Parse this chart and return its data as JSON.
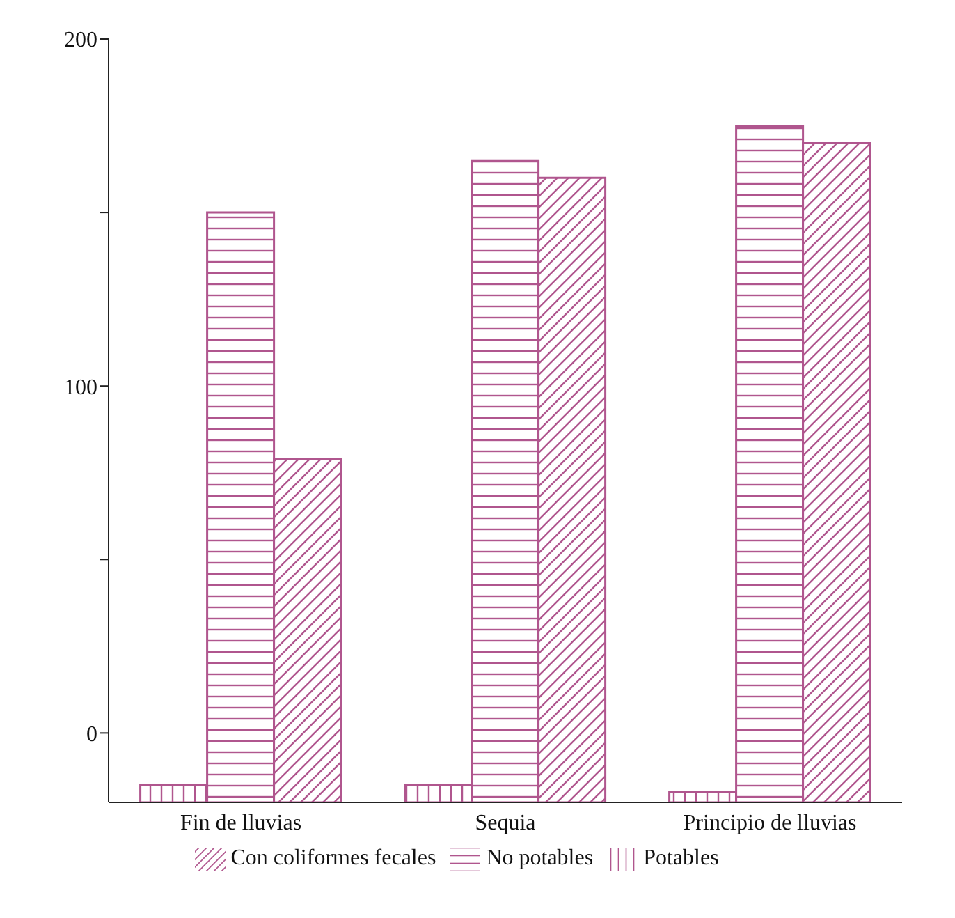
{
  "chart_data": {
    "type": "bar",
    "categories": [
      "Fin de lluvias",
      "Sequia",
      "Principio de lluvias"
    ],
    "series": [
      {
        "name": "Potables",
        "color": "#b0568e",
        "values": [
          5,
          5,
          3
        ],
        "base": [
          -20,
          -20,
          -20
        ]
      },
      {
        "name": "No potables",
        "color": "#b0568e",
        "values": [
          170,
          185,
          195
        ],
        "base": [
          -20,
          -20,
          -20
        ]
      },
      {
        "name": "Con coliformes fecales",
        "color": "#b0568e",
        "values": [
          99,
          180,
          190
        ],
        "base": [
          -20,
          -20,
          -20
        ]
      }
    ],
    "ylim": [
      -20,
      200
    ],
    "yticks": [
      0,
      {
        "value": 50,
        "label": null
      },
      100,
      {
        "value": 150,
        "label": null
      },
      200
    ],
    "grid": false,
    "legend": "bottom"
  }
}
